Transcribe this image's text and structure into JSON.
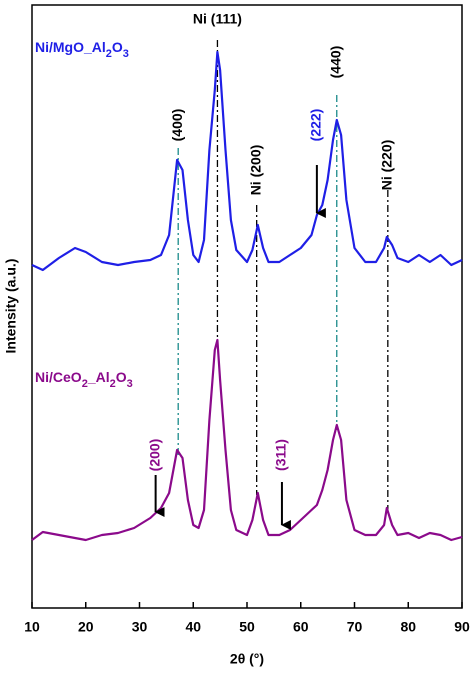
{
  "chart_data": {
    "type": "line",
    "xlabel": "2θ (°)",
    "ylabel": "Intensity (a.u.)",
    "xlim": [
      10,
      90
    ],
    "xticks": [
      10,
      20,
      30,
      40,
      50,
      60,
      70,
      80,
      90
    ],
    "ylim": [
      0,
      603
    ],
    "x": [
      10,
      12,
      15,
      18,
      20,
      23,
      26,
      29,
      32,
      34,
      35.5,
      37,
      38,
      39,
      40,
      41,
      42,
      43,
      44,
      44.5,
      45,
      46,
      47,
      48,
      50,
      51,
      52,
      53,
      54,
      56,
      58,
      60,
      62,
      63,
      64,
      65,
      66,
      66.7,
      67.5,
      68.5,
      70,
      72,
      74,
      75.5,
      76,
      77,
      78,
      80,
      82,
      84,
      86,
      88,
      90
    ],
    "series": [
      {
        "name": "Ni/MgO_Al2O3",
        "color": "#1f1fe6",
        "values": [
          343,
          338,
          350,
          360,
          356,
          346,
          343,
          346,
          348,
          353,
          373,
          448,
          438,
          388,
          353,
          346,
          368,
          458,
          518,
          556,
          538,
          458,
          388,
          358,
          346,
          358,
          383,
          360,
          346,
          346,
          353,
          360,
          373,
          393,
          403,
          428,
          468,
          488,
          473,
          408,
          360,
          346,
          346,
          360,
          371,
          363,
          350,
          346,
          353,
          346,
          353,
          343,
          348
        ]
      },
      {
        "name": "Ni/CeO2_Al2O3",
        "color": "#8b0a8b",
        "values": [
          68,
          76,
          73,
          70,
          68,
          73,
          75,
          80,
          90,
          100,
          115,
          158,
          150,
          108,
          83,
          80,
          98,
          188,
          258,
          268,
          228,
          158,
          98,
          78,
          73,
          88,
          115,
          88,
          73,
          73,
          78,
          88,
          98,
          103,
          118,
          138,
          168,
          183,
          168,
          108,
          78,
          73,
          73,
          83,
          100,
          83,
          73,
          75,
          70,
          75,
          73,
          68,
          71
        ]
      }
    ],
    "annotations": [
      {
        "text": "Ni (111)",
        "x": 44.5,
        "color": "#000000"
      },
      {
        "text": "(400)",
        "x": 37.2,
        "color": "#000000"
      },
      {
        "text": "Ni (200)",
        "x": 51.8,
        "color": "#000000"
      },
      {
        "text": "(222)",
        "x": 63,
        "color": "#1f1fe6"
      },
      {
        "text": "(440)",
        "x": 66.7,
        "color": "#000000"
      },
      {
        "text": "Ni (220)",
        "x": 76.2,
        "color": "#000000"
      },
      {
        "text": "(200)",
        "x": 33,
        "color": "#8b0a8b"
      },
      {
        "text": "(311)",
        "x": 56.5,
        "color": "#8b0a8b"
      }
    ],
    "reference_lines": [
      {
        "x": 37.2,
        "color": "#1a8a8a"
      },
      {
        "x": 44.5,
        "color": "#000000"
      },
      {
        "x": 51.8,
        "color": "#000000"
      },
      {
        "x": 66.7,
        "color": "#1a8a8a"
      },
      {
        "x": 76.2,
        "color": "#000000"
      }
    ]
  }
}
